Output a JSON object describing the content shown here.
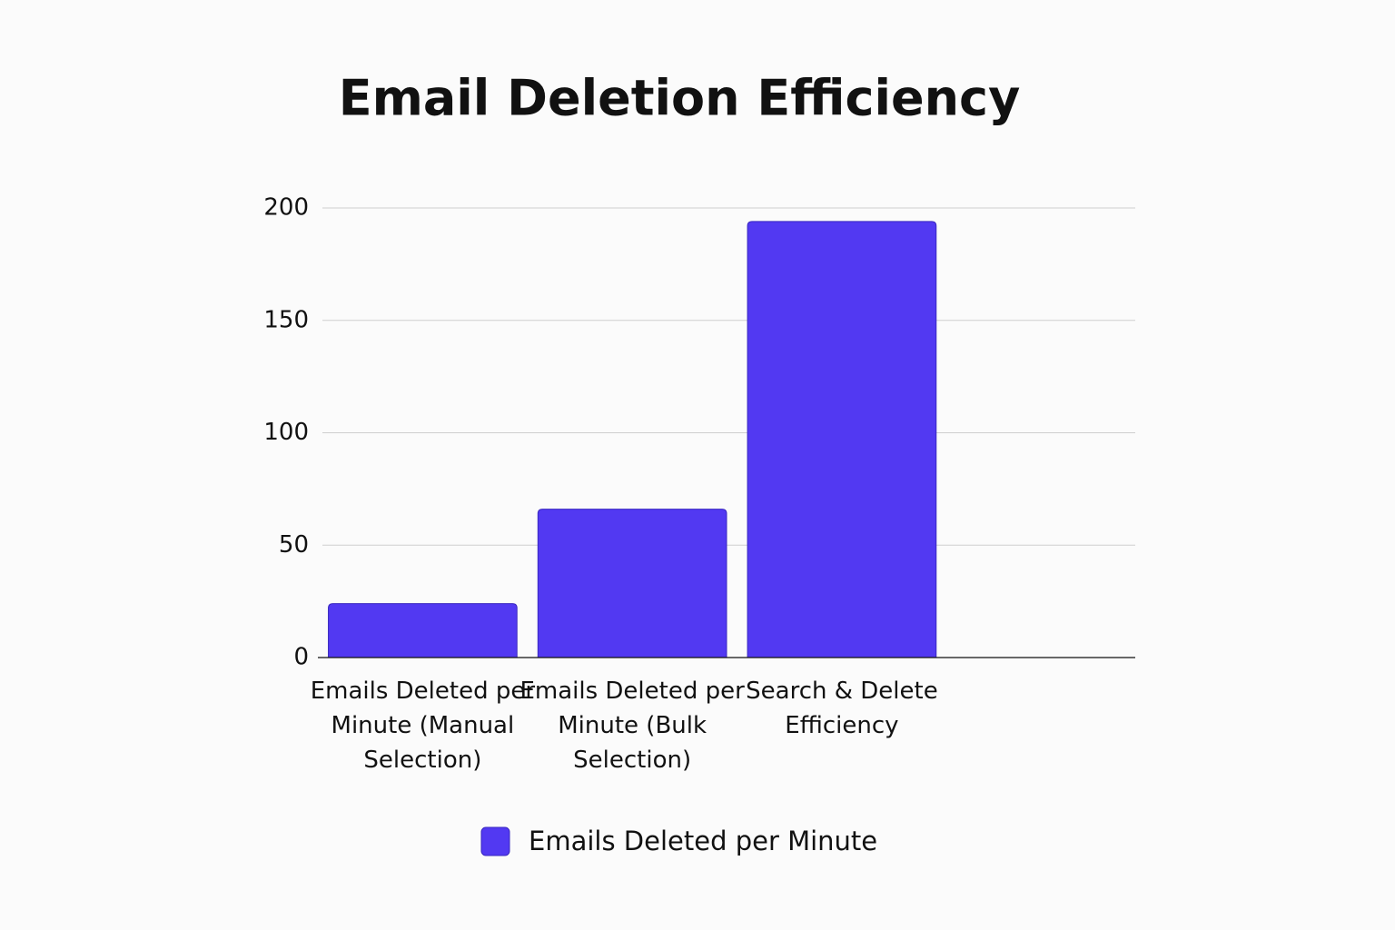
{
  "chart_data": {
    "type": "bar",
    "title": "Email Deletion Efficiency",
    "categories": [
      "Emails Deleted per Minute (Manual Selection)",
      "Emails Deleted per Minute (Bulk Selection)",
      "Search & Delete Efficiency"
    ],
    "series": [
      {
        "name": "Emails Deleted per Minute",
        "color": "#5239f2",
        "values": [
          24,
          66,
          194
        ]
      }
    ],
    "ylim": [
      0,
      200
    ],
    "yticks": [
      0,
      50,
      100,
      150,
      200
    ],
    "grid": true,
    "legend": "bottom"
  }
}
